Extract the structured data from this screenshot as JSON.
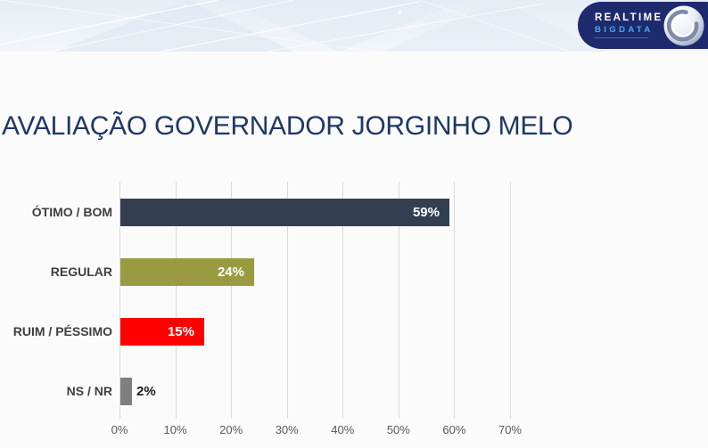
{
  "page": {
    "background": "#FBFBFC"
  },
  "header": {
    "band": {
      "color_top": "#E7EDF5",
      "color_bottom": "#F3F6FA"
    },
    "logo": {
      "line1": "REALTIME",
      "line2": "BIGDATA",
      "pill_color": "#1E2A6E",
      "line1_color": "#FFFFFF",
      "line2_color": "#46ACE2",
      "globe_icon": "record-globe"
    }
  },
  "title": {
    "text": "AVALIAÇÃO GOVERNADOR JORGINHO MELO",
    "color": "#1F3864"
  },
  "chart_data": {
    "type": "bar",
    "orientation": "horizontal",
    "title": "AVALIAÇÃO GOVERNADOR JORGINHO MELO",
    "categories": [
      "ÓTIMO / BOM",
      "REGULAR",
      "RUIM / PÉSSIMO",
      "NS / NR"
    ],
    "values": [
      59,
      24,
      15,
      2
    ],
    "value_labels": [
      "59%",
      "24%",
      "15%",
      "2%"
    ],
    "bar_colors": [
      "#333F50",
      "#9A9B41",
      "#FE0000",
      "#7F7F7F"
    ],
    "value_label_colors": [
      "#FFFFFF",
      "#FFFFFF",
      "#FFFFFF",
      "#1A1A1A"
    ],
    "xticks": [
      "0%",
      "10%",
      "20%",
      "30%",
      "40%",
      "50%",
      "60%",
      "70%"
    ],
    "xlim": [
      0,
      70
    ],
    "grid": true,
    "gridline_color": "#DBDBDB",
    "tick_color": "#595959",
    "category_label_color": "#3F3F3F",
    "legend": false,
    "xlabel": "",
    "ylabel": ""
  }
}
